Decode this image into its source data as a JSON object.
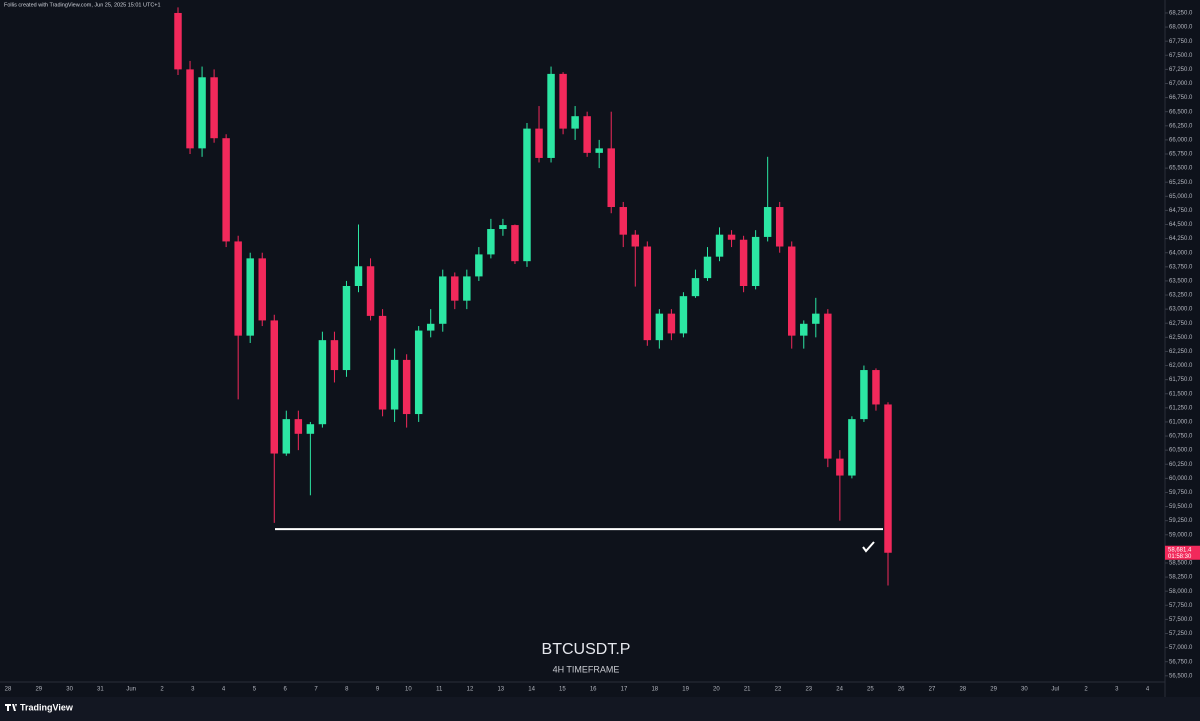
{
  "chart_data": {
    "type": "candlestick",
    "attribution": "Follis created with TradingView.com, Jun 25, 2025 15:01 UTC+1",
    "title": "BTCUSDT.P",
    "subtitle": "4H TIMEFRAME",
    "brand": "TradingView",
    "up_color": "#2ce6a3",
    "down_color": "#f2295b",
    "level": 59100,
    "level_color": "#ffffff",
    "last_price_label": "58,681.4",
    "countdown": "01:58:30",
    "x_labels": [
      "28",
      "29",
      "30",
      "31",
      "Jun",
      "2",
      "3",
      "4",
      "5",
      "6",
      "7",
      "8",
      "9",
      "10",
      "11",
      "12",
      "13",
      "14",
      "15",
      "16",
      "17",
      "18",
      "19",
      "20",
      "21",
      "22",
      "23",
      "24",
      "25",
      "26",
      "27",
      "28",
      "29",
      "30",
      "Jul",
      "2",
      "3",
      "4"
    ],
    "open": [
      68250,
      67250,
      65850,
      67110,
      66030,
      64200,
      62530,
      63900,
      62800,
      60440,
      61050,
      60790,
      60960,
      62450,
      61920,
      63410,
      63760,
      62880,
      61220,
      62100,
      61140,
      62620,
      62740,
      63580,
      63150,
      63580,
      63970,
      64420,
      64490,
      63850,
      66200,
      65680,
      67170,
      66200,
      66420,
      65770,
      65850,
      64810,
      64320,
      64110,
      62450,
      62920,
      62570,
      63230,
      63550,
      63930,
      64320,
      64230,
      63410,
      64280,
      64810,
      64110,
      62530,
      62740,
      62920,
      60350,
      60050,
      61050,
      61920,
      61310
    ],
    "high": [
      68350,
      67400,
      67300,
      67250,
      66100,
      64300,
      64000,
      64000,
      62900,
      61200,
      61200,
      61000,
      62600,
      62600,
      63500,
      64500,
      63900,
      63000,
      62300,
      62200,
      62700,
      63000,
      63700,
      63650,
      63700,
      64100,
      64600,
      64600,
      64500,
      66300,
      66600,
      67300,
      67200,
      66600,
      66500,
      66000,
      66500,
      64900,
      64400,
      64200,
      63000,
      63000,
      63300,
      63700,
      64100,
      64450,
      64400,
      64300,
      64400,
      65700,
      64900,
      64200,
      62800,
      63200,
      63000,
      60500,
      61100,
      62000,
      61950,
      61350
    ],
    "low": [
      67150,
      65750,
      65700,
      65950,
      64100,
      61400,
      62400,
      62700,
      59210,
      60400,
      60500,
      59700,
      60900,
      61700,
      61800,
      63300,
      62800,
      61100,
      61000,
      60900,
      61000,
      62500,
      62600,
      63000,
      63000,
      63500,
      63900,
      64300,
      63800,
      63750,
      65600,
      65600,
      66100,
      66000,
      65700,
      65500,
      64700,
      64100,
      63400,
      62350,
      62300,
      62450,
      62500,
      63200,
      63500,
      63850,
      64100,
      63300,
      63350,
      64200,
      64000,
      62300,
      62300,
      62500,
      60200,
      59250,
      60000,
      61000,
      61200,
      58100
    ],
    "close": [
      67250,
      65850,
      67110,
      66030,
      64200,
      62530,
      63900,
      62800,
      60440,
      61050,
      60790,
      60960,
      62450,
      61920,
      63410,
      63760,
      62880,
      61220,
      62100,
      61140,
      62620,
      62740,
      63580,
      63150,
      63580,
      63970,
      64420,
      64490,
      63850,
      66200,
      65680,
      67170,
      66200,
      66420,
      65770,
      65850,
      64810,
      64320,
      64110,
      62450,
      62920,
      62570,
      63230,
      63550,
      63930,
      64320,
      64230,
      63410,
      64280,
      64810,
      64110,
      62530,
      62740,
      62920,
      60350,
      60050,
      61050,
      61920,
      61310,
      58681.4
    ],
    "ylim": [
      56390,
      68480
    ],
    "yticks": [
      {
        "value": 68250,
        "label": "68,250.0"
      },
      {
        "value": 68000,
        "label": "68,000.0"
      },
      {
        "value": 67750,
        "label": "67,750.0"
      },
      {
        "value": 67500,
        "label": "67,500.0"
      },
      {
        "value": 67250,
        "label": "67,250.0"
      },
      {
        "value": 67000,
        "label": "67,000.0"
      },
      {
        "value": 66750,
        "label": "66,750.0"
      },
      {
        "value": 66500,
        "label": "66,500.0"
      },
      {
        "value": 66250,
        "label": "66,250.0"
      },
      {
        "value": 66000,
        "label": "66,000.0"
      },
      {
        "value": 65750,
        "label": "65,750.0"
      },
      {
        "value": 65500,
        "label": "65,500.0"
      },
      {
        "value": 65250,
        "label": "65,250.0"
      },
      {
        "value": 65000,
        "label": "65,000.0"
      },
      {
        "value": 64750,
        "label": "64,750.0"
      },
      {
        "value": 64500,
        "label": "64,500.0"
      },
      {
        "value": 64250,
        "label": "64,250.0"
      },
      {
        "value": 64000,
        "label": "64,000.0"
      },
      {
        "value": 63750,
        "label": "63,750.0"
      },
      {
        "value": 63500,
        "label": "63,500.0"
      },
      {
        "value": 63250,
        "label": "63,250.0"
      },
      {
        "value": 63000,
        "label": "63,000.0"
      },
      {
        "value": 62750,
        "label": "62,750.0"
      },
      {
        "value": 62500,
        "label": "62,500.0"
      },
      {
        "value": 62250,
        "label": "62,250.0"
      },
      {
        "value": 62000,
        "label": "62,000.0"
      },
      {
        "value": 61750,
        "label": "61,750.0"
      },
      {
        "value": 61500,
        "label": "61,500.0"
      },
      {
        "value": 61250,
        "label": "61,250.0"
      },
      {
        "value": 61000,
        "label": "61,000.0"
      },
      {
        "value": 60750,
        "label": "60,750.0"
      },
      {
        "value": 60500,
        "label": "60,500.0"
      },
      {
        "value": 60250,
        "label": "60,250.0"
      },
      {
        "value": 60000,
        "label": "60,000.0"
      },
      {
        "value": 59750,
        "label": "59,750.0"
      },
      {
        "value": 59500,
        "label": "59,500.0"
      },
      {
        "value": 59250,
        "label": "59,250.0"
      },
      {
        "value": 59000,
        "label": "59,000.0"
      },
      {
        "value": 58750,
        "label": "58,750.0"
      },
      {
        "value": 58500,
        "label": "58,500.0"
      },
      {
        "value": 58250,
        "label": "58,250.0"
      },
      {
        "value": 58000,
        "label": "58,000.0"
      },
      {
        "value": 57750,
        "label": "57,750.0"
      },
      {
        "value": 57500,
        "label": "57,500.0"
      },
      {
        "value": 57250,
        "label": "57,250.0"
      },
      {
        "value": 57000,
        "label": "57,000.0"
      },
      {
        "value": 56750,
        "label": "56,750.0"
      },
      {
        "value": 56500,
        "label": "56,500.0"
      }
    ]
  }
}
